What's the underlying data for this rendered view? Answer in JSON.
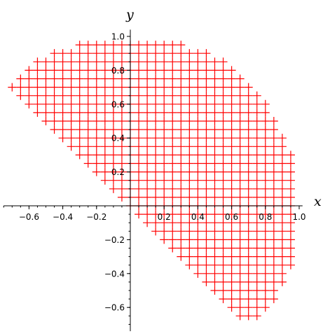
{
  "chart_data": {
    "type": "scatter",
    "title": "",
    "xlabel": "x",
    "ylabel": "y",
    "xlim": [
      -0.75,
      1.02
    ],
    "ylim": [
      -0.74,
      1.04
    ],
    "grid": false,
    "mark_color": "#ff0000",
    "mark": "plus",
    "grid_step": 0.05,
    "region_description_rows": [
      {
        "y": 0.95,
        "xmin": -0.3,
        "xmax": 0.3
      },
      {
        "y": 0.9,
        "xmin": -0.45,
        "xmax": 0.45
      },
      {
        "y": 0.85,
        "xmin": -0.55,
        "xmax": 0.55
      },
      {
        "y": 0.8,
        "xmin": -0.6,
        "xmax": 0.6
      },
      {
        "y": 0.75,
        "xmin": -0.65,
        "xmax": 0.65
      },
      {
        "y": 0.7,
        "xmin": -0.7,
        "xmax": 0.7
      },
      {
        "y": 0.65,
        "xmin": -0.65,
        "xmax": 0.75
      },
      {
        "y": 0.6,
        "xmin": -0.6,
        "xmax": 0.8
      },
      {
        "y": 0.55,
        "xmin": -0.55,
        "xmax": 0.8
      },
      {
        "y": 0.5,
        "xmin": -0.5,
        "xmax": 0.85
      },
      {
        "y": 0.45,
        "xmin": -0.45,
        "xmax": 0.85
      },
      {
        "y": 0.4,
        "xmin": -0.4,
        "xmax": 0.9
      },
      {
        "y": 0.35,
        "xmin": -0.35,
        "xmax": 0.9
      },
      {
        "y": 0.3,
        "xmin": -0.3,
        "xmax": 0.95
      },
      {
        "y": 0.25,
        "xmin": -0.25,
        "xmax": 0.95
      },
      {
        "y": 0.2,
        "xmin": -0.2,
        "xmax": 0.95
      },
      {
        "y": 0.15,
        "xmin": -0.15,
        "xmax": 0.95
      },
      {
        "y": 0.1,
        "xmin": -0.1,
        "xmax": 0.95
      },
      {
        "y": 0.05,
        "xmin": -0.05,
        "xmax": 0.95
      },
      {
        "y": 0.0,
        "xmin": 0.0,
        "xmax": 0.95
      },
      {
        "y": -0.05,
        "xmin": 0.05,
        "xmax": 0.95
      },
      {
        "y": -0.1,
        "xmin": 0.1,
        "xmax": 0.95
      },
      {
        "y": -0.15,
        "xmin": 0.15,
        "xmax": 0.95
      },
      {
        "y": -0.2,
        "xmin": 0.2,
        "xmax": 0.95
      },
      {
        "y": -0.25,
        "xmin": 0.25,
        "xmax": 0.95
      },
      {
        "y": -0.3,
        "xmin": 0.3,
        "xmax": 0.95
      },
      {
        "y": -0.35,
        "xmin": 0.35,
        "xmax": 0.95
      },
      {
        "y": -0.4,
        "xmin": 0.4,
        "xmax": 0.9
      },
      {
        "y": -0.45,
        "xmin": 0.45,
        "xmax": 0.9
      },
      {
        "y": -0.5,
        "xmin": 0.5,
        "xmax": 0.85
      },
      {
        "y": -0.55,
        "xmin": 0.55,
        "xmax": 0.85
      },
      {
        "y": -0.6,
        "xmin": 0.6,
        "xmax": 0.8
      },
      {
        "y": -0.65,
        "xmin": 0.65,
        "xmax": 0.75
      }
    ],
    "x_ticks": [
      {
        "value": -0.6,
        "label": "−0.6"
      },
      {
        "value": -0.4,
        "label": "−0.4"
      },
      {
        "value": -0.2,
        "label": "−0.2"
      },
      {
        "value": 0.2,
        "label": "0.2"
      },
      {
        "value": 0.4,
        "label": "0.4"
      },
      {
        "value": 0.6,
        "label": "0.6"
      },
      {
        "value": 0.8,
        "label": "0.8"
      },
      {
        "value": 1.0,
        "label": "1.0"
      }
    ],
    "y_ticks": [
      {
        "value": -0.6,
        "label": "−0.6"
      },
      {
        "value": -0.4,
        "label": "−0.4"
      },
      {
        "value": -0.2,
        "label": "−0.2"
      },
      {
        "value": 0.2,
        "label": "0.2"
      },
      {
        "value": 0.4,
        "label": "0.4"
      },
      {
        "value": 0.6,
        "label": "0.6"
      },
      {
        "value": 0.8,
        "label": "0.8"
      },
      {
        "value": 1.0,
        "label": "1.0"
      }
    ]
  }
}
